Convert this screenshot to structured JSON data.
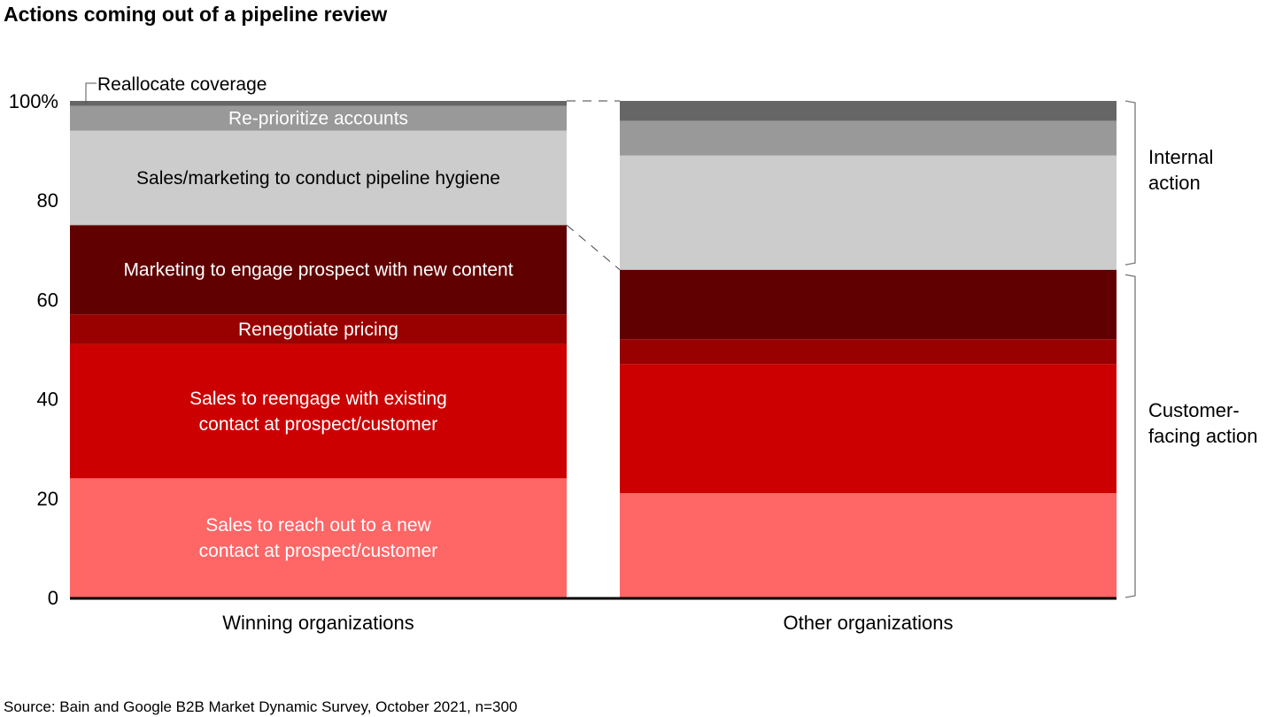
{
  "chart_data": {
    "type": "bar",
    "stacked": true,
    "title": "Actions coming out of a pipeline review",
    "source": "Source: Bain and Google B2B Market Dynamic Survey, October 2021, n=300",
    "categories": [
      "Winning organizations",
      "Other organizations"
    ],
    "ylim": [
      0,
      100
    ],
    "yticks": [
      "0",
      "20",
      "40",
      "60",
      "80",
      "100%"
    ],
    "grid": false,
    "series": [
      {
        "name": "Sales to reach out to a new contact at prospect/customer",
        "lines": [
          "Sales to reach out to a new",
          "contact at prospect/customer"
        ],
        "color": "#ff6666",
        "label_color": "#ffffff",
        "values": [
          24,
          21
        ]
      },
      {
        "name": "Sales to reengage with existing contact at prospect/customer",
        "lines": [
          "Sales to reengage with existing",
          "contact at prospect/customer"
        ],
        "color": "#cc0000",
        "label_color": "#ffffff",
        "values": [
          27,
          26
        ]
      },
      {
        "name": "Renegotiate pricing",
        "lines": [
          "Renegotiate pricing"
        ],
        "color": "#990000",
        "label_color": "#ffffff",
        "values": [
          6,
          5
        ]
      },
      {
        "name": "Marketing to engage prospect with new content",
        "lines": [
          "Marketing to engage prospect with new content"
        ],
        "color": "#600000",
        "label_color": "#ffffff",
        "values": [
          18,
          14
        ]
      },
      {
        "name": "Sales/marketing to conduct pipeline hygiene",
        "lines": [
          "Sales/marketing to conduct pipeline hygiene"
        ],
        "color": "#cccccc",
        "label_color": "#000000",
        "values": [
          19,
          23
        ]
      },
      {
        "name": "Re-prioritize accounts",
        "lines": [
          "Re-prioritize accounts"
        ],
        "color": "#999999",
        "label_color": "#ffffff",
        "values": [
          5,
          7
        ]
      },
      {
        "name": "Reallocate coverage",
        "lines": [
          "Reallocate coverage"
        ],
        "color": "#666666",
        "label_color": "#000000",
        "label_outside": true,
        "values": [
          1,
          4
        ]
      }
    ],
    "brackets": [
      {
        "lines": [
          "Internal",
          "action"
        ],
        "range": [
          67,
          100
        ]
      },
      {
        "lines": [
          "Customer-",
          "facing action"
        ],
        "range": [
          0,
          65
        ]
      }
    ]
  }
}
